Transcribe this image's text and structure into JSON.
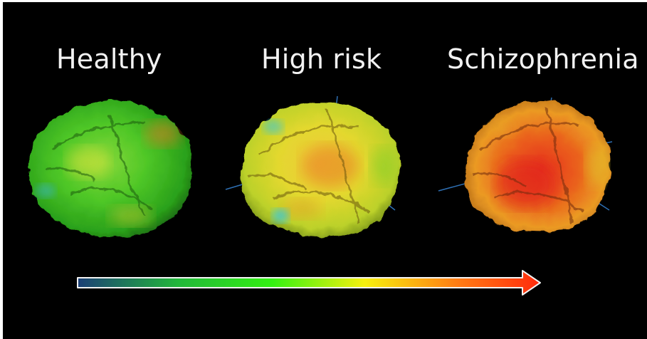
{
  "labels": {
    "healthy": "Healthy",
    "high_risk": "High risk",
    "schizophrenia": "Schizophrenia"
  },
  "brains": [
    {
      "icon": "brain-healthy-icon",
      "dominant_color": "#45c81e"
    },
    {
      "icon": "brain-high-risk-icon",
      "dominant_color": "#e5d128"
    },
    {
      "icon": "brain-schizophrenia-icon",
      "dominant_color": "#e8661c"
    }
  ],
  "gradient_arrow": {
    "icon": "gradient-arrow-icon",
    "colors": [
      "#1c3f76",
      "#22b83a",
      "#33f012",
      "#f7f10e",
      "#ff7d14",
      "#ff2a0c"
    ]
  },
  "colors": {
    "background": "#000000",
    "text": "#f2f2f2"
  }
}
